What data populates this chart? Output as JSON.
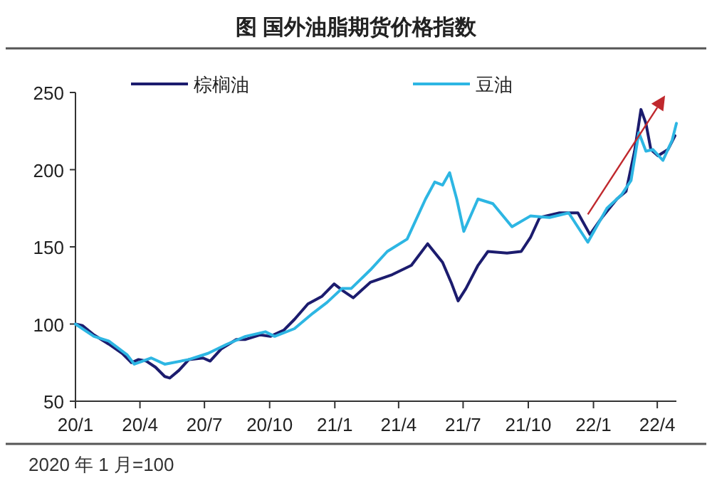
{
  "chart_data": {
    "type": "line",
    "title": "图  国外油脂期货价格指数",
    "xlim": [
      "2020-01-01",
      "2022-04-28"
    ],
    "xticks": [
      {
        "value": "2020-01-01",
        "label": "20/1"
      },
      {
        "value": "2020-04-01",
        "label": "20/4"
      },
      {
        "value": "2020-07-01",
        "label": "20/7"
      },
      {
        "value": "2020-10-01",
        "label": "20/10"
      },
      {
        "value": "2021-01-01",
        "label": "21/1"
      },
      {
        "value": "2021-04-01",
        "label": "21/4"
      },
      {
        "value": "2021-07-01",
        "label": "21/7"
      },
      {
        "value": "2021-10-01",
        "label": "21/10"
      },
      {
        "value": "2022-01-01",
        "label": "22/1"
      },
      {
        "value": "2022-04-01",
        "label": "22/4"
      }
    ],
    "ylim": [
      50,
      250
    ],
    "yticks": [
      50,
      100,
      150,
      200,
      250
    ],
    "grid": false,
    "legend": "top",
    "series": [
      {
        "name": "棕榈油",
        "color": "#1c1c6e",
        "x": [
          "2020-01-01",
          "2020-01-11",
          "2020-01-27",
          "2020-02-17",
          "2020-03-07",
          "2020-03-20",
          "2020-03-30",
          "2020-04-10",
          "2020-04-23",
          "2020-05-06",
          "2020-05-13",
          "2020-05-26",
          "2020-06-09",
          "2020-06-29",
          "2020-07-09",
          "2020-07-25",
          "2020-08-15",
          "2020-08-28",
          "2020-09-18",
          "2020-10-02",
          "2020-10-21",
          "2020-11-05",
          "2020-11-24",
          "2020-12-14",
          "2020-12-31",
          "2021-01-14",
          "2021-01-27",
          "2021-02-20",
          "2021-03-23",
          "2021-04-19",
          "2021-05-12",
          "2021-06-02",
          "2021-06-15",
          "2021-06-24",
          "2021-07-05",
          "2021-07-22",
          "2021-08-05",
          "2021-09-01",
          "2021-09-21",
          "2021-10-04",
          "2021-10-17",
          "2021-11-14",
          "2021-12-10",
          "2021-12-27",
          "2022-01-13",
          "2022-02-03",
          "2022-02-16",
          "2022-02-28",
          "2022-03-09",
          "2022-03-16",
          "2022-03-23",
          "2022-04-02",
          "2022-04-16",
          "2022-04-26"
        ],
        "values": [
          100,
          99,
          93,
          87,
          81,
          75,
          77,
          76,
          72,
          66,
          65,
          70,
          77,
          78,
          76,
          84,
          90,
          90,
          93,
          92,
          96,
          103,
          113,
          118,
          126,
          121,
          117,
          127,
          132,
          138,
          152,
          140,
          126,
          115,
          123,
          138,
          147,
          146,
          147,
          156,
          169,
          172,
          172,
          158,
          169,
          181,
          186,
          212,
          239,
          230,
          213,
          209,
          213,
          222
        ]
      },
      {
        "name": "豆油",
        "color": "#2db6e3",
        "x": [
          "2020-01-01",
          "2020-01-27",
          "2020-02-17",
          "2020-03-14",
          "2020-03-24",
          "2020-04-17",
          "2020-05-06",
          "2020-06-09",
          "2020-07-06",
          "2020-08-02",
          "2020-08-28",
          "2020-09-25",
          "2020-10-08",
          "2020-11-05",
          "2020-12-01",
          "2020-12-21",
          "2021-01-11",
          "2021-01-24",
          "2021-02-20",
          "2021-03-16",
          "2021-04-13",
          "2021-05-09",
          "2021-05-22",
          "2021-06-02",
          "2021-06-12",
          "2021-06-22",
          "2021-07-02",
          "2021-07-22",
          "2021-08-12",
          "2021-09-08",
          "2021-10-04",
          "2021-10-31",
          "2021-11-27",
          "2021-12-24",
          "2022-01-20",
          "2022-02-10",
          "2022-02-23",
          "2022-03-06",
          "2022-03-16",
          "2022-03-26",
          "2022-04-09",
          "2022-04-22",
          "2022-04-28"
        ],
        "values": [
          100,
          92,
          89,
          80,
          74,
          78,
          74,
          77,
          81,
          87,
          92,
          95,
          92,
          97,
          107,
          114,
          123,
          123,
          135,
          147,
          155,
          181,
          192,
          190,
          198,
          181,
          160,
          181,
          178,
          163,
          170,
          169,
          172,
          153,
          175,
          184,
          193,
          224,
          212,
          213,
          206,
          219,
          230
        ]
      }
    ],
    "annotations": [
      "2020 年 1 月=100"
    ]
  }
}
